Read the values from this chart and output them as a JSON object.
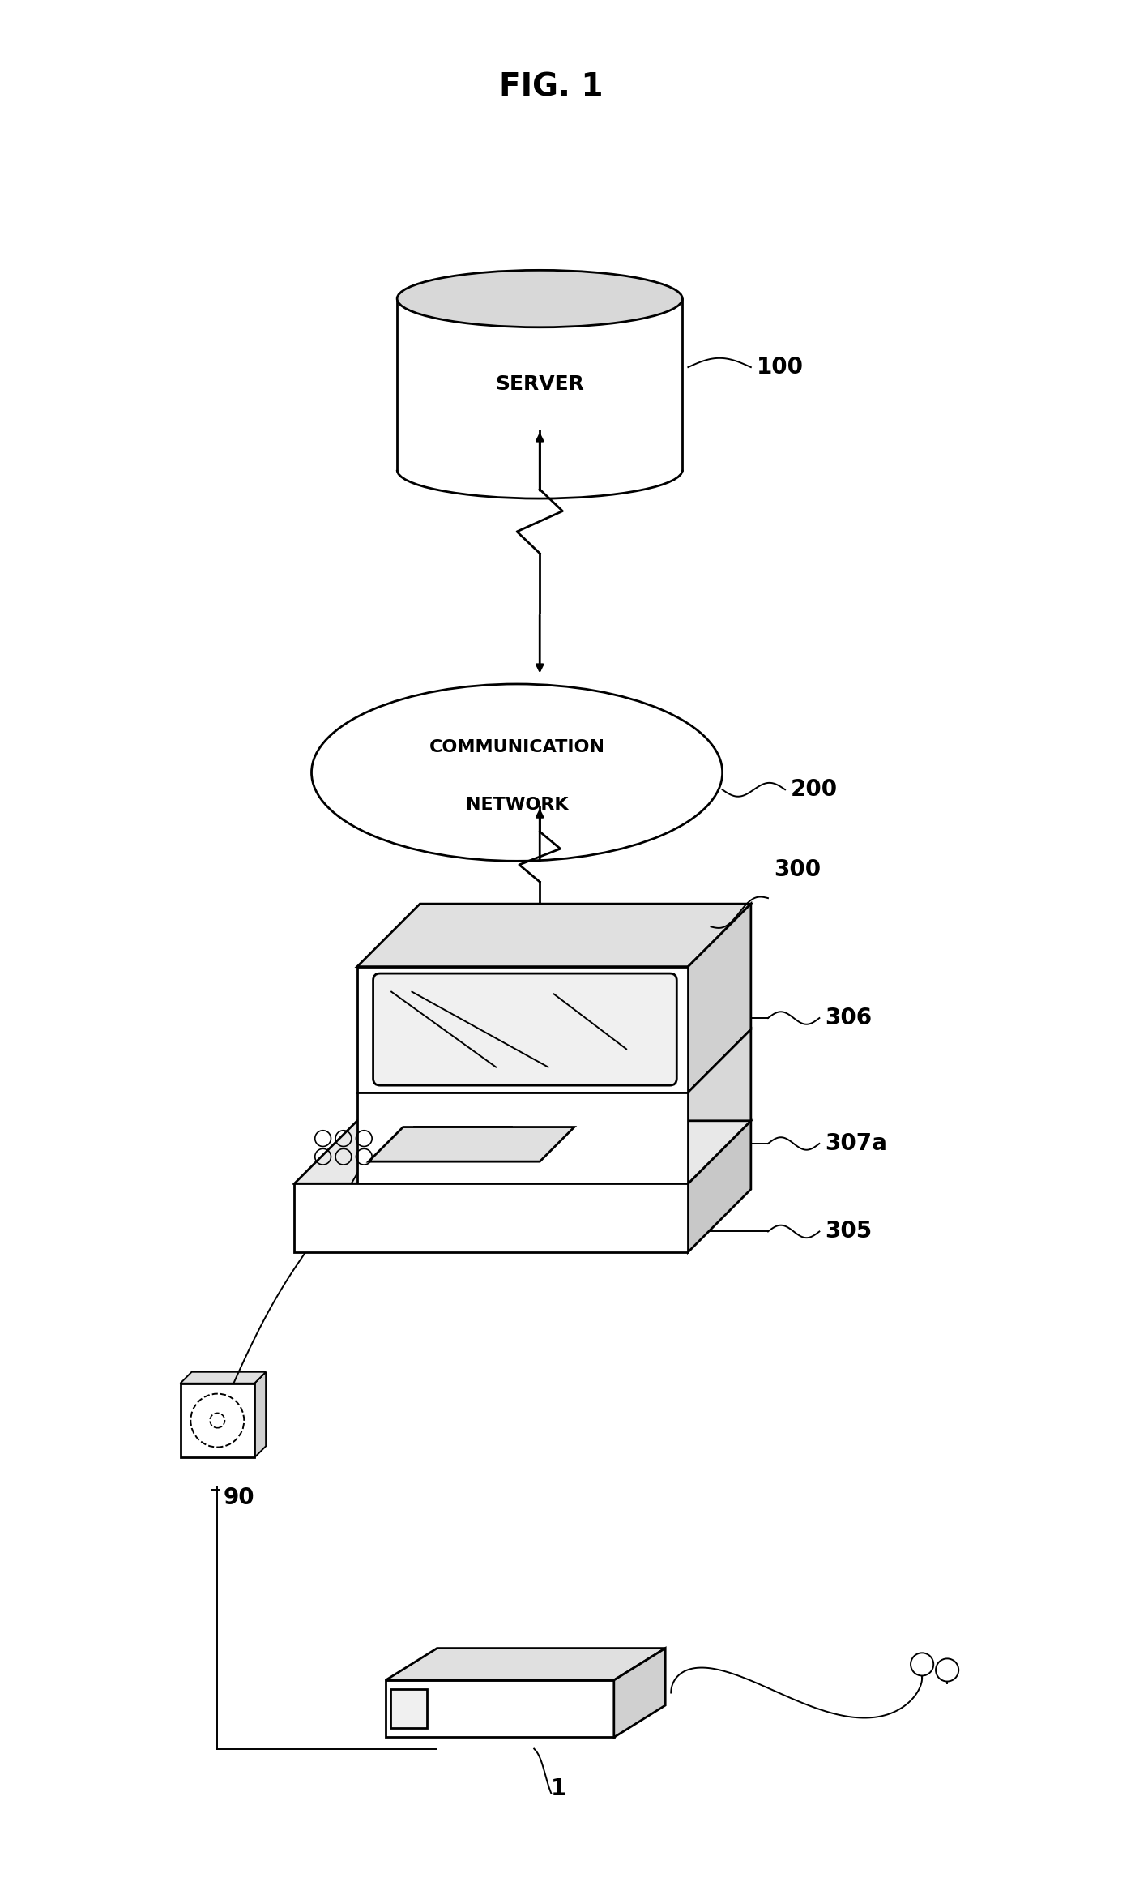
{
  "title": "FIG. 1",
  "bg_color": "#ffffff",
  "line_color": "#000000",
  "fig_width": 14.17,
  "fig_height": 23.43,
  "server_label": "SERVER",
  "server_ref": "100",
  "network_line1": "COMMUNICATION",
  "network_line2": "NETWORK",
  "network_ref": "200",
  "computer_ref": "300",
  "screen_ref": "306",
  "slot_ref": "307a",
  "base_ref": "305",
  "device_ref": "90",
  "card_ref": "1"
}
